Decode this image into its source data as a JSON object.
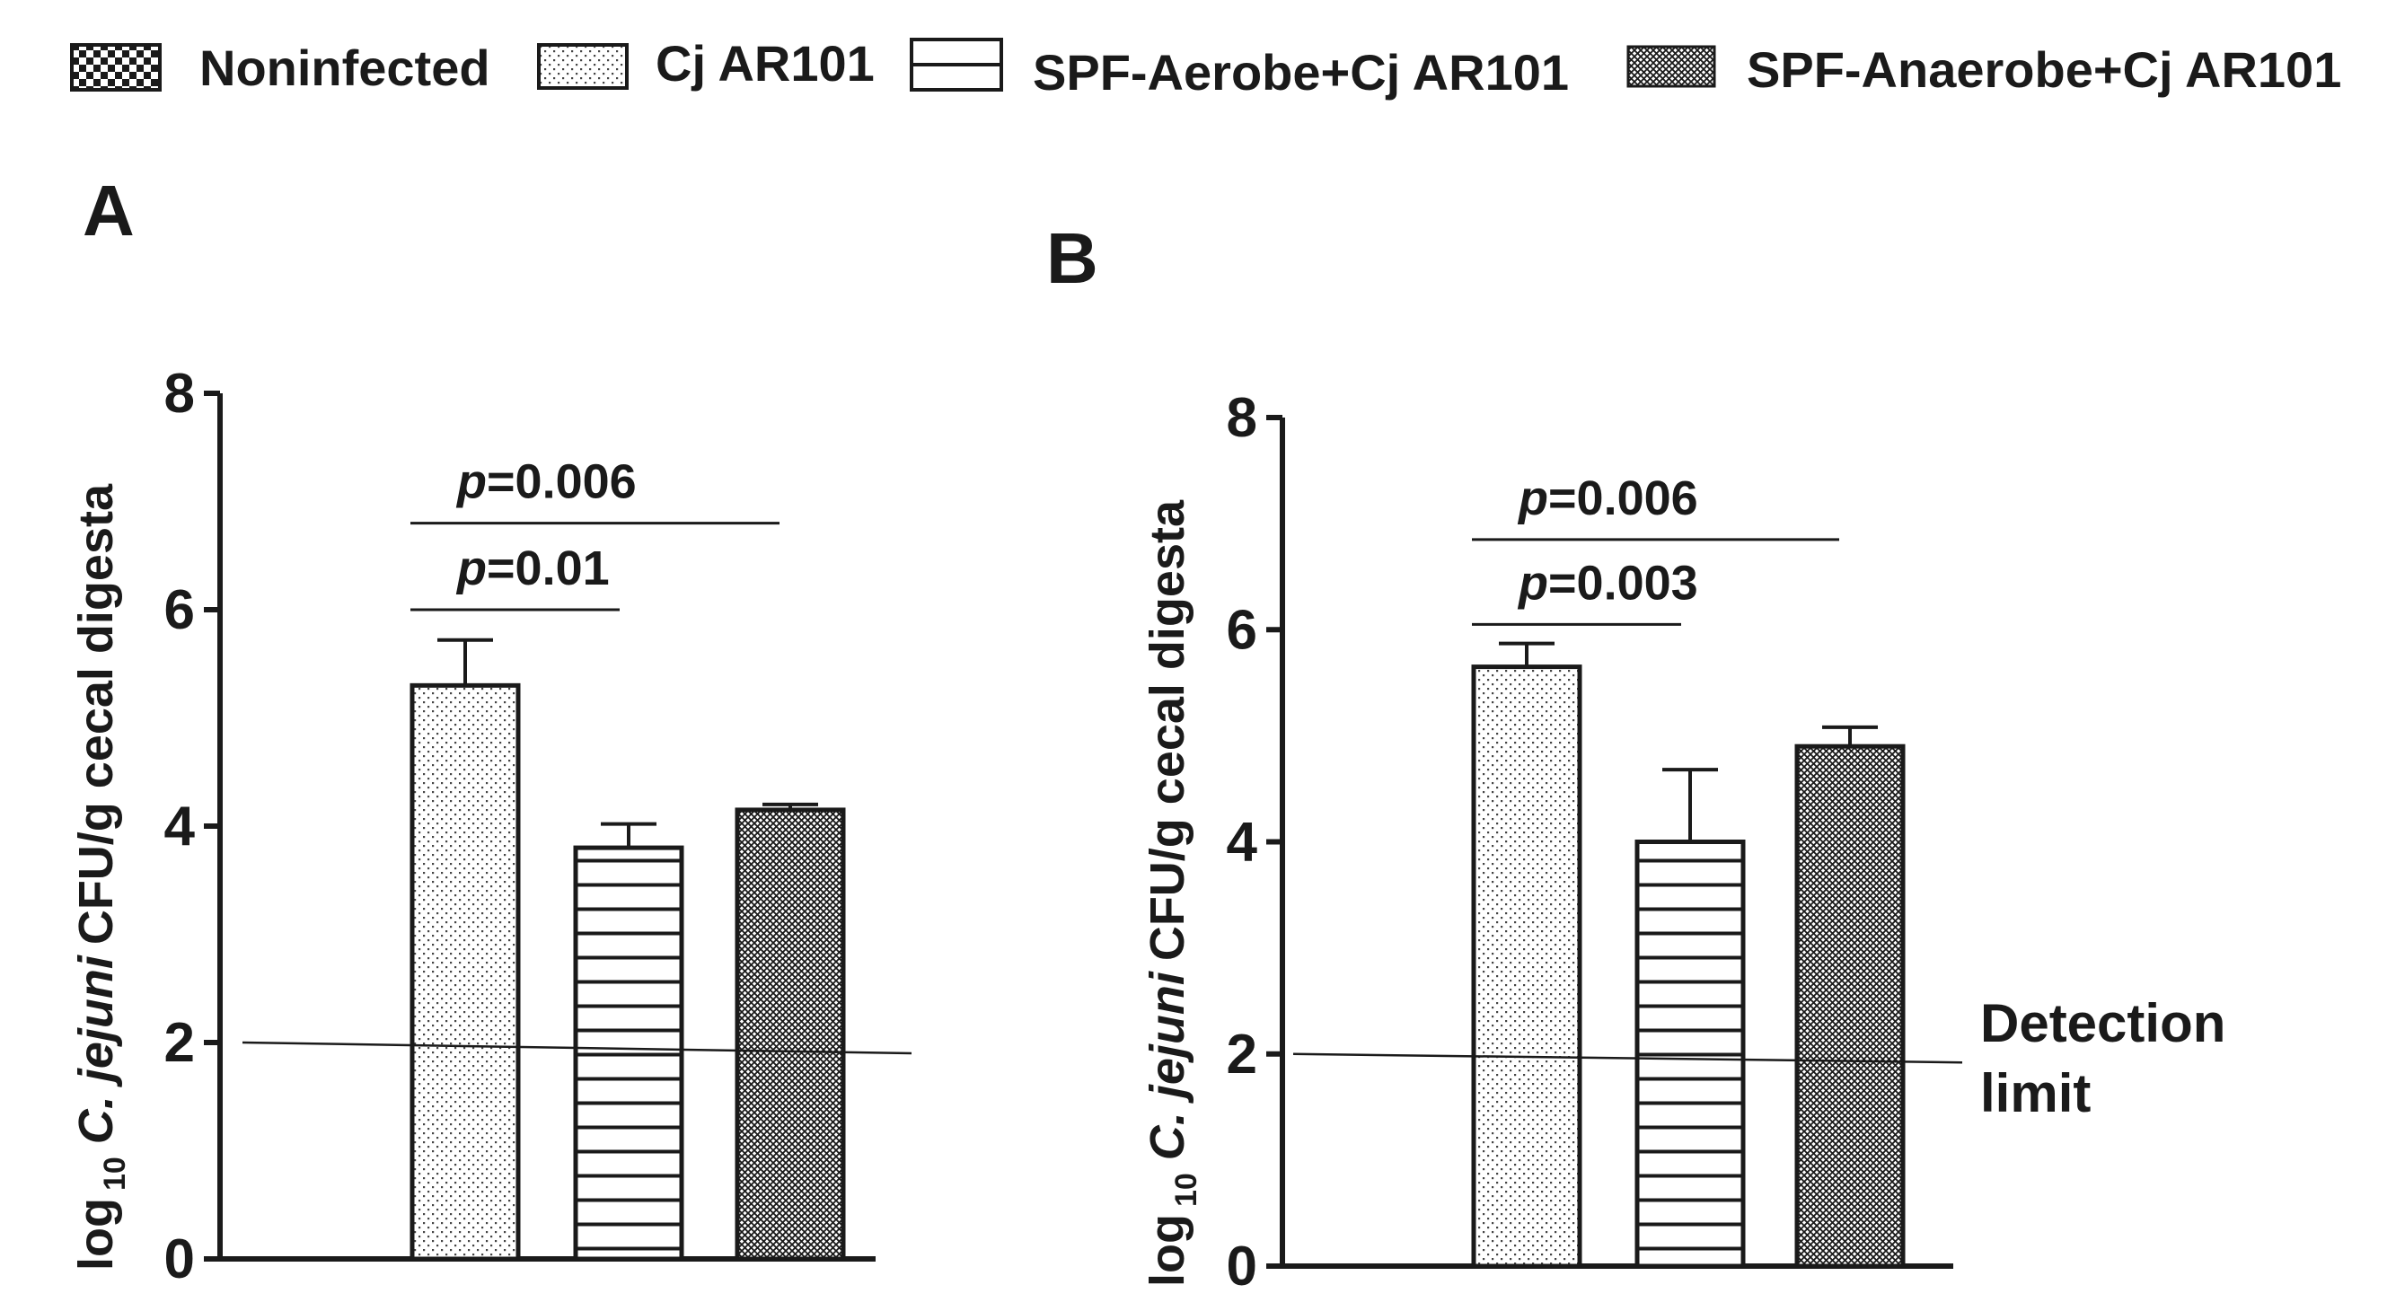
{
  "legend": [
    {
      "label": "Noninfected",
      "pattern": "checker"
    },
    {
      "label": "Cj AR101",
      "pattern": "dots"
    },
    {
      "label": "SPF-Aerobe+Cj AR101",
      "pattern": "hlines"
    },
    {
      "label": "SPF-Anaerobe+Cj AR101",
      "pattern": "crosshatch"
    }
  ],
  "ylabel_parts": {
    "log": "log",
    "sub": "10",
    "species": "C. jejuni",
    "rest": "CFU/g cecal digesta"
  },
  "colors": {
    "ink": "#1a1a1a",
    "background": "#ffffff"
  },
  "chart_data": [
    {
      "panel": "A",
      "type": "bar",
      "ylim": [
        0,
        8
      ],
      "yticks": [
        0,
        2,
        4,
        6,
        8
      ],
      "categories": [
        "Noninfected",
        "Cj AR101",
        "SPF-Aerobe+Cj AR101",
        "SPF-Anaerobe+Cj AR101"
      ],
      "values": [
        null,
        5.3,
        3.8,
        4.15
      ],
      "errors": [
        null,
        0.42,
        0.22,
        0.05
      ],
      "detection_limit": {
        "y_start": 2.0,
        "y_end": 1.9
      },
      "annotations": [
        {
          "text_italic": "p",
          "text_rest": "=0.01",
          "from": 1,
          "to": 2,
          "y": 6.0
        },
        {
          "text_italic": "p",
          "text_rest": "=0.006",
          "from": 1,
          "to": 3,
          "y": 6.8
        }
      ]
    },
    {
      "panel": "B",
      "type": "bar",
      "ylim": [
        0,
        8
      ],
      "yticks": [
        0,
        2,
        4,
        6,
        8
      ],
      "categories": [
        "Noninfected",
        "Cj AR101",
        "SPF-Aerobe+Cj AR101",
        "SPF-Anaerobe+Cj AR101"
      ],
      "values": [
        null,
        5.65,
        4.0,
        4.9
      ],
      "errors": [
        null,
        0.22,
        0.68,
        0.18
      ],
      "detection_limit": {
        "y_start": 2.0,
        "y_end": 1.92,
        "label_line1": "Detection",
        "label_line2": "limit"
      },
      "annotations": [
        {
          "text_italic": "p",
          "text_rest": "=0.003",
          "from": 1,
          "to": 2,
          "y": 6.05
        },
        {
          "text_italic": "p",
          "text_rest": "=0.006",
          "from": 1,
          "to": 3,
          "y": 6.85
        }
      ]
    }
  ]
}
